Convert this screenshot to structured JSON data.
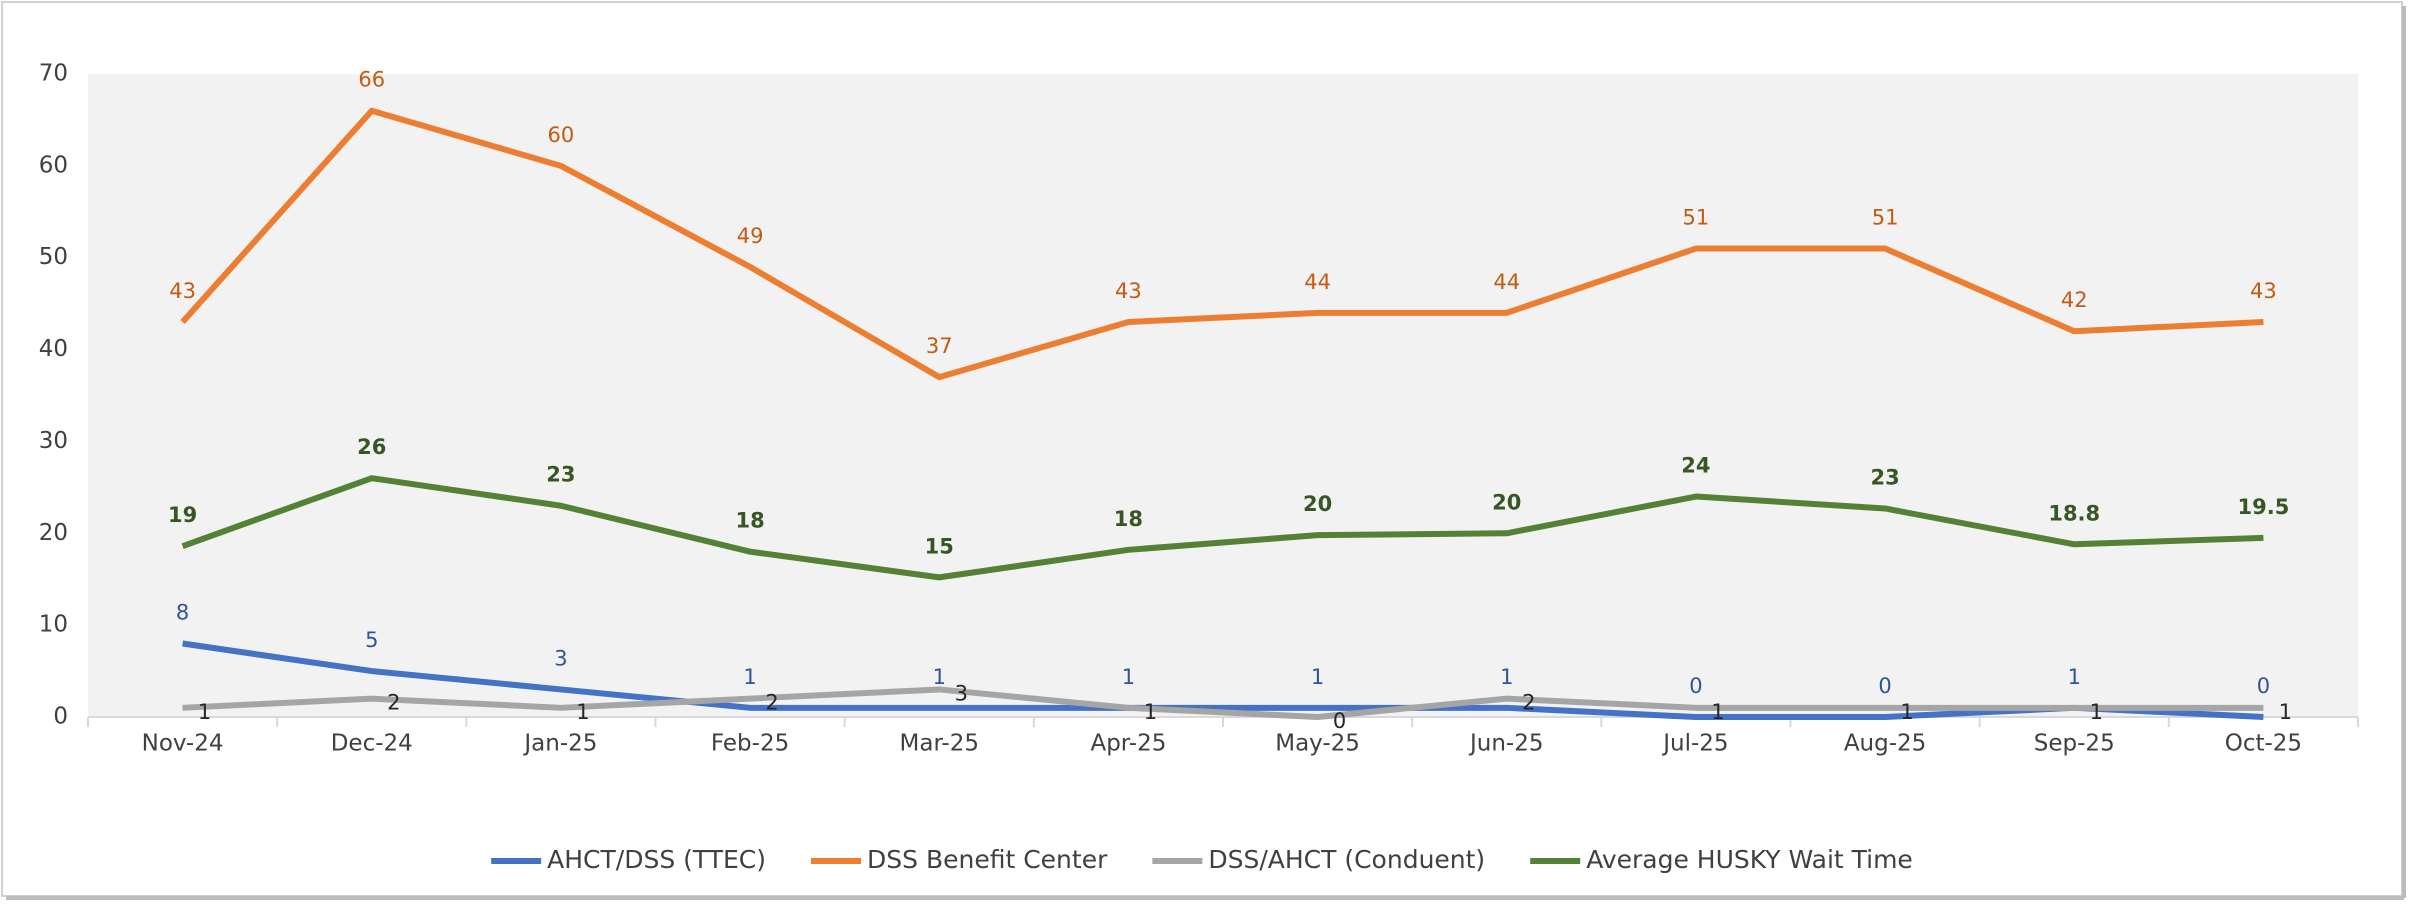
{
  "chart_data": {
    "type": "line",
    "categories": [
      "Nov-24",
      "Dec-24",
      "Jan-25",
      "Feb-25",
      "Mar-25",
      "Apr-25",
      "May-25",
      "Jun-25",
      "Jul-25",
      "Aug-25",
      "Sep-25",
      "Oct-25"
    ],
    "ylim": [
      0,
      70
    ],
    "yticks": [
      0,
      10,
      20,
      30,
      40,
      50,
      60,
      70
    ],
    "grid": false,
    "legend": "bottom",
    "series": [
      {
        "name": "AHCT/DSS (TTEC)",
        "color": "#4472c4",
        "label_color": "#2f5597",
        "values": [
          8,
          5,
          3,
          1,
          1,
          1,
          1,
          1,
          0,
          0,
          1,
          0
        ]
      },
      {
        "name": "DSS Benefit Center",
        "color": "#ed7d31",
        "label_color": "#c55a11",
        "values": [
          43,
          66,
          60,
          49,
          37,
          43,
          44,
          44,
          51,
          51,
          42,
          43
        ]
      },
      {
        "name": "DSS/AHCT (Conduent)",
        "color": "#a5a5a5",
        "label_color": "#262626",
        "values": [
          1,
          2,
          1,
          2,
          3,
          1,
          0,
          2,
          1,
          1,
          1,
          1
        ]
      },
      {
        "name": "Average HUSKY Wait Time",
        "color": "#548235",
        "label_color": "#375623",
        "values": [
          18.6,
          26,
          23,
          18,
          15.2,
          18.2,
          19.8,
          20,
          24,
          22.7,
          18.8,
          19.5
        ],
        "value_labels": [
          "19",
          "26",
          "23",
          "18",
          "15",
          "18",
          "20",
          "20",
          "24",
          "23",
          "18.8",
          "19.5"
        ]
      }
    ]
  }
}
